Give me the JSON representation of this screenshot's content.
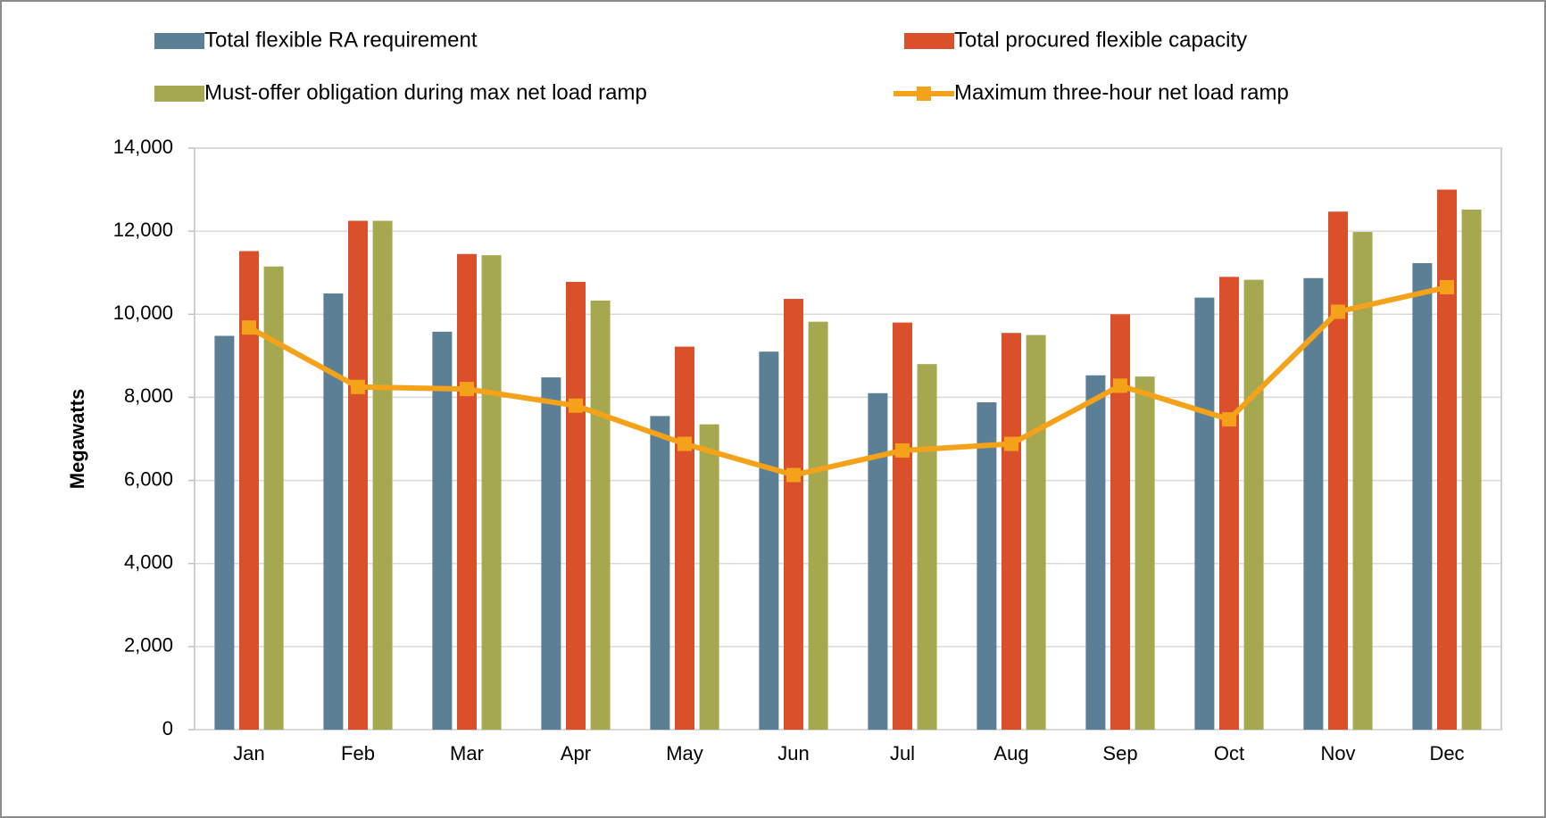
{
  "chart_data": {
    "type": "bar",
    "y_label": "Megawatts",
    "categories": [
      "Jan",
      "Feb",
      "Mar",
      "Apr",
      "May",
      "Jun",
      "Jul",
      "Aug",
      "Sep",
      "Oct",
      "Nov",
      "Dec"
    ],
    "series": [
      {
        "name": "Total flexible RA requirement",
        "color": "#5b7f95",
        "values": [
          9480,
          10500,
          9580,
          8480,
          7550,
          9100,
          8100,
          7880,
          8530,
          10400,
          10870,
          11230
        ]
      },
      {
        "name": "Total procured flexible capacity",
        "color": "#d9502a",
        "values": [
          11520,
          12250,
          11450,
          10780,
          9220,
          10370,
          9800,
          9550,
          10000,
          10900,
          12470,
          13000
        ]
      },
      {
        "name": "Must-offer obligation during max net load ramp",
        "color": "#a5a84f",
        "values": [
          11150,
          12250,
          11420,
          10330,
          7350,
          9820,
          8800,
          9500,
          8500,
          10830,
          11980,
          12520
        ]
      },
      {
        "name": "Maximum three-hour net load ramp",
        "color": "#f5a21b",
        "type": "line",
        "values": [
          9680,
          8250,
          8200,
          7800,
          6880,
          6130,
          6720,
          6880,
          8280,
          7470,
          10060,
          10650
        ]
      }
    ],
    "ylim": [
      0,
      14000
    ],
    "yticks": [
      0,
      {
        "value": 2000,
        "label": "2,000"
      },
      {
        "value": 4000,
        "label": "4,000"
      },
      {
        "value": 6000,
        "label": "6,000"
      },
      {
        "value": 8000,
        "label": "8,000"
      },
      {
        "value": 10000,
        "label": "10,000"
      },
      {
        "value": 12000,
        "label": "12,000"
      },
      {
        "value": 14000,
        "label": "14,000"
      }
    ],
    "grid": true
  }
}
